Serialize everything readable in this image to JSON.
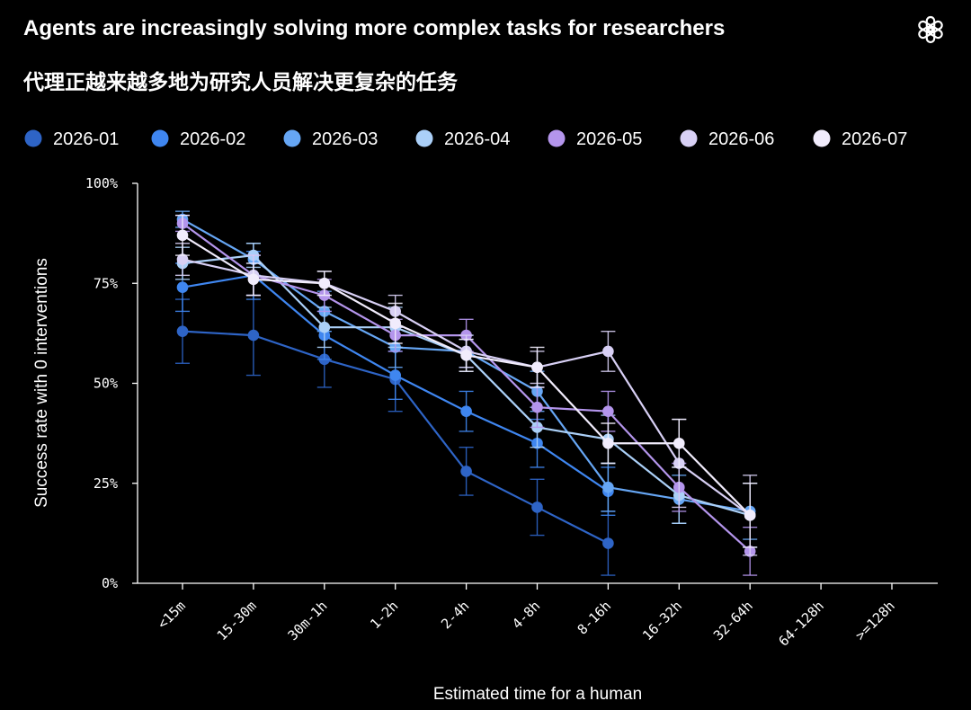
{
  "header": {
    "title": "Agents are increasingly solving more complex tasks for researchers",
    "subtitle": "代理正越来越多地为研究人员解决更复杂的任务",
    "logo_icon": "openai-logo-icon"
  },
  "chart_data": {
    "type": "line",
    "title": "Agents are increasingly solving more complex tasks for researchers",
    "subtitle": "代理正越来越多地为研究人员解决更复杂的任务",
    "xlabel": "Estimated time for a human",
    "ylabel": "Success rate with 0 interventions",
    "ylim": [
      0,
      100
    ],
    "y_ticks": [
      0,
      25,
      50,
      75,
      100
    ],
    "y_tick_labels": [
      "0%",
      "25%",
      "50%",
      "75%",
      "100%"
    ],
    "categories": [
      "<15m",
      "15-30m",
      "30m-1h",
      "1-2h",
      "2-4h",
      "4-8h",
      "8-16h",
      "16-32h",
      "32-64h",
      "64-128h",
      ">=128h"
    ],
    "legend_position": "top",
    "grid": false,
    "error_bars": true,
    "series": [
      {
        "name": "2026-01",
        "color": "#2e64c6",
        "values": [
          63,
          62,
          56,
          51,
          28,
          19,
          10,
          null,
          null,
          null,
          null
        ],
        "err": [
          8,
          10,
          7,
          8,
          6,
          7,
          8,
          null,
          null,
          null,
          null
        ]
      },
      {
        "name": "2026-02",
        "color": "#3f86f0",
        "values": [
          74,
          77,
          62,
          52,
          43,
          35,
          23,
          null,
          null,
          null,
          null
        ],
        "err": [
          6,
          6,
          6,
          6,
          5,
          6,
          6,
          null,
          null,
          null,
          null
        ]
      },
      {
        "name": "2026-03",
        "color": "#66a6f4",
        "values": [
          91,
          81,
          68,
          59,
          58,
          48,
          24,
          21,
          18,
          null,
          null
        ],
        "err": [
          2,
          4,
          5,
          5,
          4,
          5,
          6,
          6,
          7,
          null,
          null
        ]
      },
      {
        "name": "2026-04",
        "color": "#abd0f8",
        "values": [
          80,
          82,
          64,
          64,
          57,
          39,
          36,
          22,
          17,
          null,
          null
        ],
        "err": [
          4,
          3,
          5,
          5,
          4,
          5,
          6,
          7,
          8,
          null,
          null
        ]
      },
      {
        "name": "2026-05",
        "color": "#b495ec",
        "values": [
          90,
          77,
          72,
          62,
          62,
          44,
          43,
          24,
          8,
          null,
          null
        ],
        "err": [
          2,
          5,
          4,
          4,
          4,
          5,
          5,
          6,
          6,
          null,
          null
        ]
      },
      {
        "name": "2026-06",
        "color": "#d8d0f5",
        "values": [
          81,
          77,
          75,
          68,
          58,
          54,
          58,
          30,
          17,
          null,
          null
        ],
        "err": [
          4,
          5,
          3,
          4,
          4,
          4,
          5,
          11,
          10,
          null,
          null
        ]
      },
      {
        "name": "2026-07",
        "color": "#f1ecfc",
        "values": [
          87,
          76,
          75,
          65,
          57,
          54,
          35,
          35,
          17,
          null,
          null
        ],
        "err": [
          5,
          4,
          3,
          5,
          4,
          5,
          5,
          6,
          8,
          null,
          null
        ]
      }
    ]
  }
}
